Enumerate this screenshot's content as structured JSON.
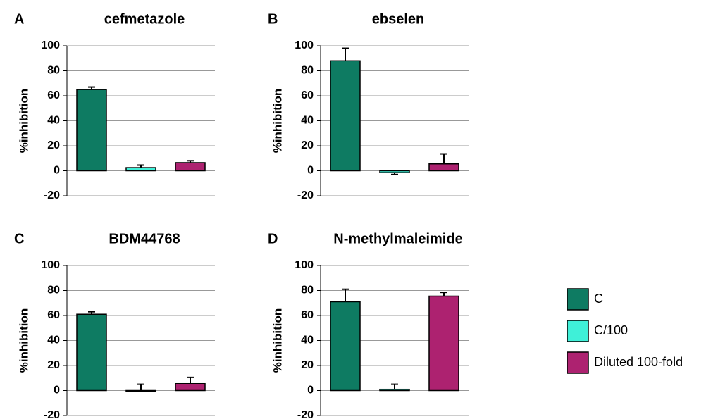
{
  "chart_data": [
    {
      "type": "bar",
      "panel": "A",
      "title": "cefmetazole",
      "y_label": "%inhibition",
      "ylim": [
        -20,
        100
      ],
      "yticks": [
        -20,
        0,
        20,
        40,
        60,
        80,
        100
      ],
      "grid": true,
      "values": [
        65,
        2.5,
        6.5
      ],
      "errors": [
        2,
        2,
        1.5
      ]
    },
    {
      "type": "bar",
      "panel": "B",
      "title": "ebselen",
      "y_label": "%inhibition",
      "ylim": [
        -20,
        100
      ],
      "yticks": [
        -20,
        0,
        20,
        40,
        60,
        80,
        100
      ],
      "grid": true,
      "values": [
        88,
        -1.5,
        5.5
      ],
      "errors": [
        10,
        1.5,
        8
      ]
    },
    {
      "type": "bar",
      "panel": "C",
      "title": "BDM44768",
      "y_label": "%inhibition",
      "ylim": [
        -20,
        100
      ],
      "yticks": [
        -20,
        0,
        20,
        40,
        60,
        80,
        100
      ],
      "grid": true,
      "values": [
        61,
        0,
        5.5
      ],
      "errors": [
        2,
        5,
        5
      ]
    },
    {
      "type": "bar",
      "panel": "D",
      "title": "N-methylmaleimide",
      "y_label": "%inhibition",
      "ylim": [
        -20,
        100
      ],
      "yticks": [
        -20,
        0,
        20,
        40,
        60,
        80,
        100
      ],
      "grid": true,
      "values": [
        71,
        1,
        75.5
      ],
      "errors": [
        10,
        4,
        3
      ]
    }
  ],
  "legend": [
    {
      "name": "C",
      "color": "#0e7b62"
    },
    {
      "name": "C/100",
      "color": "#3ff0d8"
    },
    {
      "name": "Diluted 100-fold",
      "color": "#ad2270"
    }
  ]
}
